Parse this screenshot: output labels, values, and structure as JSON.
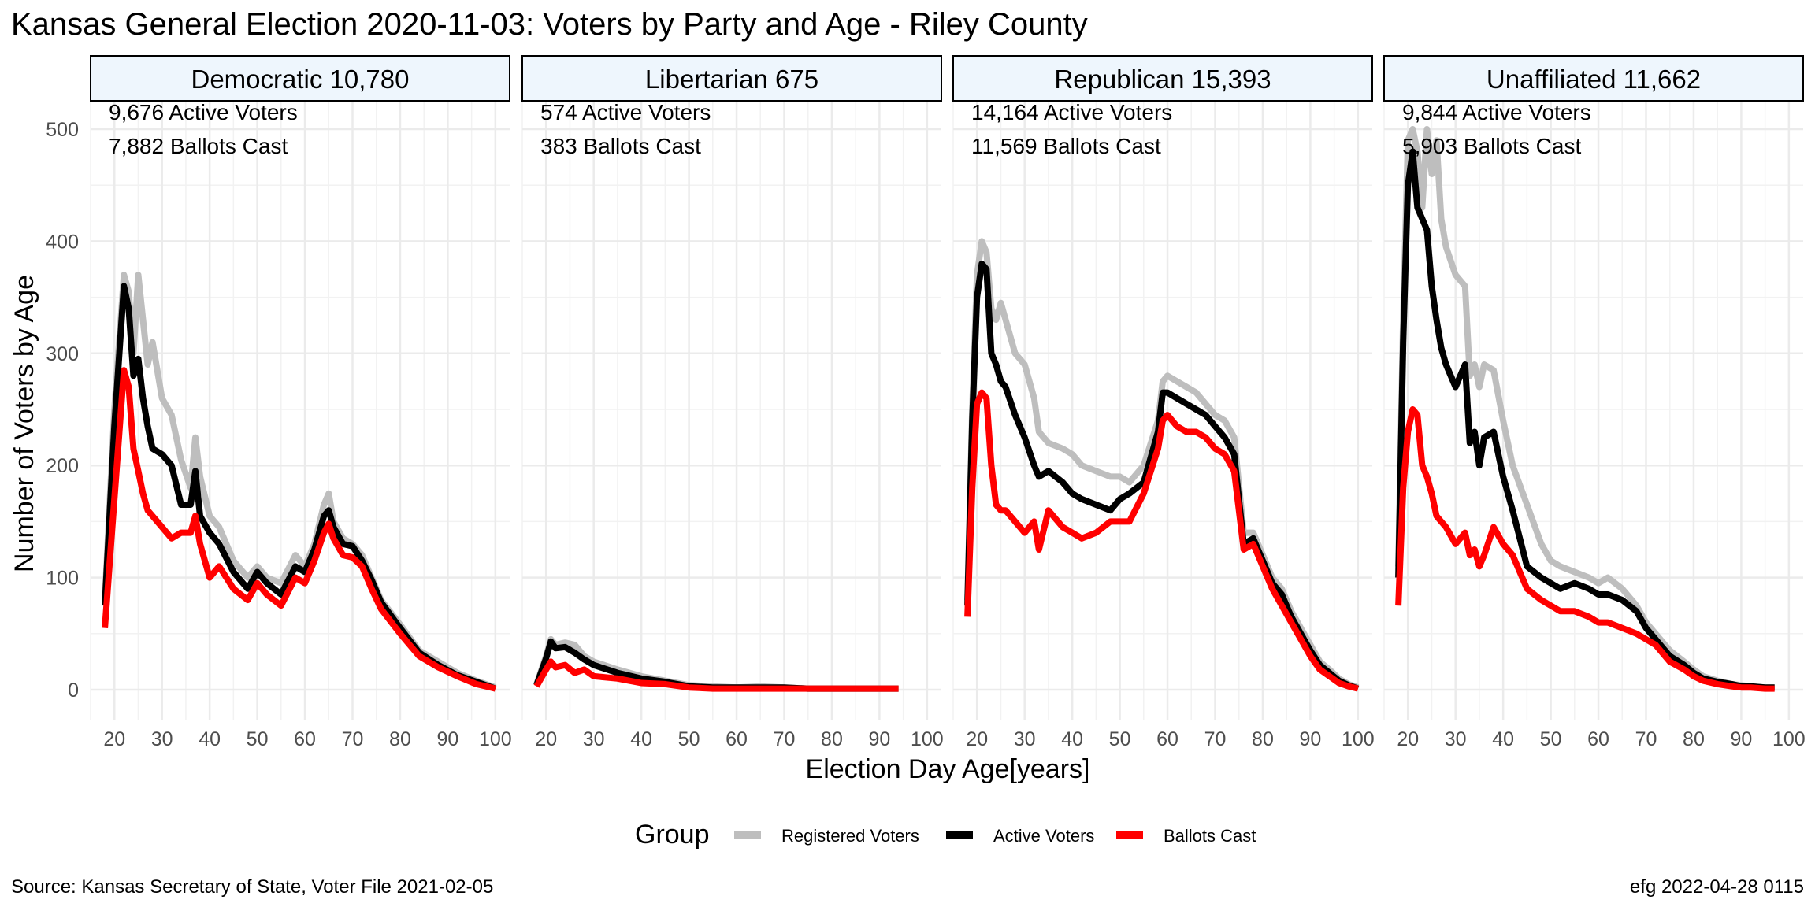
{
  "title": "Kansas General Election 2020-11-03:  Voters by Party and Age - Riley County",
  "source": "Source:  Kansas Secretary of State, Voter File  2021-02-05",
  "credit": "efg 2022-04-28 0115",
  "legend": {
    "title": "Group",
    "items": [
      {
        "label": "Registered Voters",
        "color": "#bebebe"
      },
      {
        "label": "Active Voters",
        "color": "#000000"
      },
      {
        "label": "Ballots Cast",
        "color": "#ff0000"
      }
    ]
  },
  "chart_data": {
    "type": "line",
    "xlabel": "Election Day Age[years]",
    "ylabel": "Number of Voters by Age",
    "xlim": [
      15,
      103
    ],
    "ylim": [
      0,
      500
    ],
    "x_ticks": [
      20,
      30,
      40,
      50,
      60,
      70,
      80,
      90,
      100
    ],
    "y_ticks": [
      0,
      100,
      200,
      300,
      400,
      500
    ],
    "grid": true,
    "legend_position": "bottom",
    "panels": [
      {
        "strip": "Democratic 10,780",
        "annotations": [
          "9,676 Active Voters",
          "7,882 Ballots Cast"
        ],
        "series": [
          {
            "name": "Registered Voters",
            "x": [
              18,
              20,
              22,
              23,
              24,
              25,
              26,
              27,
              28,
              30,
              32,
              34,
              36,
              37,
              38,
              40,
              42,
              45,
              48,
              50,
              52,
              55,
              58,
              60,
              62,
              64,
              65,
              66,
              68,
              70,
              72,
              74,
              76,
              80,
              84,
              88,
              92,
              96,
              100
            ],
            "y": [
              80,
              250,
              370,
              355,
              300,
              370,
              330,
              290,
              310,
              260,
              245,
              205,
              180,
              225,
              190,
              155,
              145,
              115,
              100,
              110,
              100,
              95,
              120,
              110,
              130,
              165,
              175,
              150,
              135,
              130,
              120,
              100,
              80,
              58,
              35,
              25,
              15,
              8,
              2
            ]
          },
          {
            "name": "Active Voters",
            "x": [
              18,
              20,
              22,
              23,
              24,
              25,
              26,
              27,
              28,
              30,
              32,
              34,
              36,
              37,
              38,
              40,
              42,
              45,
              48,
              50,
              52,
              55,
              58,
              60,
              62,
              64,
              65,
              66,
              68,
              70,
              72,
              74,
              76,
              80,
              84,
              88,
              92,
              96,
              100
            ],
            "y": [
              75,
              235,
              360,
              340,
              280,
              295,
              260,
              235,
              215,
              210,
              200,
              165,
              165,
              195,
              155,
              140,
              130,
              105,
              90,
              105,
              95,
              85,
              110,
              105,
              125,
              155,
              160,
              145,
              130,
              128,
              115,
              98,
              78,
              55,
              33,
              22,
              13,
              7,
              1
            ]
          },
          {
            "name": "Ballots Cast",
            "x": [
              18,
              20,
              22,
              23,
              24,
              25,
              26,
              27,
              28,
              30,
              32,
              34,
              36,
              37,
              38,
              40,
              42,
              45,
              48,
              50,
              52,
              55,
              58,
              60,
              62,
              64,
              65,
              66,
              68,
              70,
              72,
              74,
              76,
              80,
              84,
              88,
              92,
              96,
              100
            ],
            "y": [
              55,
              170,
              285,
              270,
              215,
              195,
              175,
              160,
              155,
              145,
              135,
              140,
              140,
              155,
              130,
              100,
              110,
              90,
              80,
              95,
              85,
              75,
              100,
              95,
              115,
              140,
              148,
              135,
              120,
              118,
              110,
              90,
              72,
              50,
              30,
              20,
              12,
              5,
              1
            ]
          }
        ]
      },
      {
        "strip": "Libertarian 675",
        "annotations": [
          "574 Active Voters",
          "383 Ballots Cast"
        ],
        "series": [
          {
            "name": "Registered Voters",
            "x": [
              18,
              20,
              21,
              22,
              24,
              26,
              28,
              30,
              35,
              40,
              45,
              50,
              55,
              60,
              65,
              70,
              75,
              80,
              85,
              90,
              94
            ],
            "y": [
              5,
              30,
              45,
              40,
              42,
              40,
              30,
              25,
              18,
              12,
              8,
              4,
              3,
              2,
              3,
              2,
              1,
              1,
              1,
              1,
              1
            ]
          },
          {
            "name": "Active Voters",
            "x": [
              18,
              20,
              21,
              22,
              24,
              26,
              28,
              30,
              35,
              40,
              45,
              50,
              55,
              60,
              65,
              70,
              75,
              80,
              85,
              90,
              94
            ],
            "y": [
              4,
              28,
              43,
              37,
              38,
              33,
              27,
              22,
              15,
              10,
              7,
              3,
              2,
              2,
              2,
              2,
              1,
              1,
              1,
              1,
              1
            ]
          },
          {
            "name": "Ballots Cast",
            "x": [
              18,
              20,
              21,
              22,
              24,
              26,
              28,
              30,
              35,
              40,
              45,
              50,
              55,
              60,
              65,
              70,
              75,
              80,
              85,
              90,
              94
            ],
            "y": [
              3,
              18,
              25,
              20,
              22,
              15,
              18,
              12,
              10,
              6,
              5,
              2,
              1,
              1,
              1,
              1,
              1,
              1,
              1,
              1,
              1
            ]
          }
        ]
      },
      {
        "strip": "Republican 15,393",
        "annotations": [
          "14,164 Active Voters",
          "11,569 Ballots Cast"
        ],
        "series": [
          {
            "name": "Registered Voters",
            "x": [
              18,
              19,
              20,
              21,
              22,
              23,
              24,
              25,
              26,
              28,
              30,
              32,
              33,
              35,
              38,
              40,
              42,
              45,
              48,
              50,
              52,
              55,
              58,
              59,
              60,
              62,
              64,
              66,
              68,
              70,
              72,
              74,
              76,
              78,
              80,
              82,
              84,
              86,
              88,
              90,
              92,
              94,
              96,
              98,
              100
            ],
            "y": [
              80,
              250,
              370,
              400,
              390,
              340,
              330,
              345,
              330,
              300,
              290,
              260,
              230,
              220,
              215,
              210,
              200,
              195,
              190,
              190,
              185,
              200,
              240,
              275,
              280,
              275,
              270,
              265,
              255,
              245,
              240,
              225,
              140,
              140,
              120,
              100,
              90,
              70,
              55,
              40,
              25,
              18,
              10,
              5,
              2
            ]
          },
          {
            "name": "Active Voters",
            "x": [
              18,
              19,
              20,
              21,
              22,
              23,
              24,
              25,
              26,
              28,
              30,
              32,
              33,
              35,
              38,
              40,
              42,
              45,
              48,
              50,
              52,
              55,
              58,
              59,
              60,
              62,
              64,
              66,
              68,
              70,
              72,
              74,
              76,
              78,
              80,
              82,
              84,
              86,
              88,
              90,
              92,
              94,
              96,
              98,
              100
            ],
            "y": [
              75,
              240,
              350,
              380,
              375,
              300,
              290,
              275,
              270,
              245,
              225,
              200,
              190,
              195,
              185,
              175,
              170,
              165,
              160,
              170,
              175,
              185,
              230,
              265,
              265,
              260,
              255,
              250,
              245,
              235,
              225,
              210,
              130,
              135,
              115,
              95,
              85,
              65,
              50,
              35,
              22,
              15,
              8,
              4,
              1
            ]
          },
          {
            "name": "Ballots Cast",
            "x": [
              18,
              19,
              20,
              21,
              22,
              23,
              24,
              25,
              26,
              28,
              30,
              32,
              33,
              35,
              38,
              40,
              42,
              45,
              48,
              50,
              52,
              55,
              58,
              59,
              60,
              62,
              64,
              66,
              68,
              70,
              72,
              74,
              76,
              78,
              80,
              82,
              84,
              86,
              88,
              90,
              92,
              94,
              96,
              98,
              100
            ],
            "y": [
              65,
              180,
              255,
              265,
              260,
              200,
              165,
              160,
              160,
              150,
              140,
              150,
              125,
              160,
              145,
              140,
              135,
              140,
              150,
              150,
              150,
              175,
              215,
              240,
              245,
              235,
              230,
              230,
              225,
              215,
              210,
              195,
              125,
              130,
              110,
              90,
              75,
              60,
              45,
              30,
              18,
              12,
              6,
              3,
              1
            ]
          }
        ]
      },
      {
        "strip": "Unaffiliated 11,662",
        "annotations": [
          "9,844 Active Voters",
          "5,903 Ballots Cast"
        ],
        "series": [
          {
            "name": "Registered Voters",
            "x": [
              18,
              19,
              20,
              21,
              22,
              23,
              24,
              25,
              26,
              27,
              28,
              30,
              32,
              33,
              34,
              35,
              36,
              38,
              40,
              42,
              45,
              48,
              50,
              52,
              55,
              58,
              60,
              62,
              65,
              68,
              70,
              72,
              75,
              78,
              80,
              82,
              85,
              88,
              90,
              92,
              95,
              97
            ],
            "y": [
              110,
              330,
              490,
              500,
              480,
              430,
              500,
              460,
              490,
              420,
              395,
              370,
              360,
              280,
              290,
              270,
              290,
              285,
              240,
              200,
              165,
              130,
              115,
              110,
              105,
              100,
              95,
              100,
              90,
              75,
              60,
              50,
              35,
              25,
              18,
              12,
              8,
              5,
              4,
              3,
              2,
              2
            ]
          },
          {
            "name": "Active Voters",
            "x": [
              18,
              19,
              20,
              21,
              22,
              23,
              24,
              25,
              26,
              27,
              28,
              30,
              32,
              33,
              34,
              35,
              36,
              38,
              40,
              42,
              45,
              48,
              50,
              52,
              55,
              58,
              60,
              62,
              65,
              68,
              70,
              72,
              75,
              78,
              80,
              82,
              85,
              88,
              90,
              92,
              95,
              97
            ],
            "y": [
              100,
              310,
              450,
              480,
              430,
              420,
              410,
              360,
              330,
              305,
              290,
              270,
              290,
              220,
              230,
              200,
              225,
              230,
              190,
              160,
              110,
              100,
              95,
              90,
              95,
              90,
              85,
              85,
              80,
              70,
              55,
              45,
              30,
              22,
              15,
              10,
              7,
              5,
              3,
              3,
              2,
              2
            ]
          },
          {
            "name": "Ballots Cast",
            "x": [
              18,
              19,
              20,
              21,
              22,
              23,
              24,
              25,
              26,
              27,
              28,
              30,
              32,
              33,
              34,
              35,
              36,
              38,
              40,
              42,
              45,
              48,
              50,
              52,
              55,
              58,
              60,
              62,
              65,
              68,
              70,
              72,
              75,
              78,
              80,
              82,
              85,
              88,
              90,
              92,
              95,
              97
            ],
            "y": [
              75,
              180,
              230,
              250,
              245,
              200,
              190,
              175,
              155,
              150,
              145,
              130,
              140,
              120,
              125,
              110,
              120,
              145,
              130,
              120,
              90,
              80,
              75,
              70,
              70,
              65,
              60,
              60,
              55,
              50,
              45,
              40,
              25,
              18,
              12,
              8,
              5,
              3,
              2,
              2,
              1,
              1
            ]
          }
        ]
      }
    ]
  }
}
